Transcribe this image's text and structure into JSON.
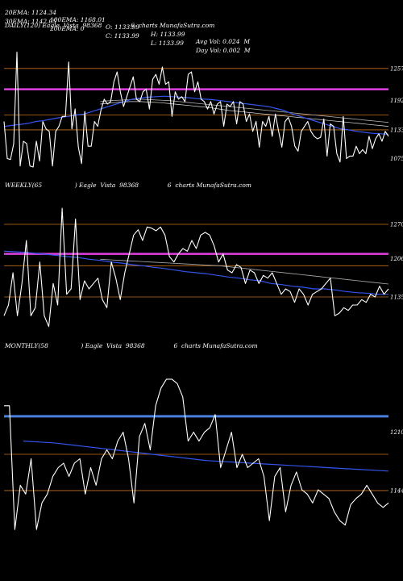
{
  "header": {
    "row1": [
      "20EMA: 1124.34",
      "100EMA: 1168.01",
      "O: 1133.99",
      "H: 1133.99",
      "Avg Vol: 0.024  M"
    ],
    "row2": [
      "30EMA: 1142.05",
      "200EMA: 0",
      "C: 1133.99",
      "L: 1133.99",
      "Day Vol: 0.002  M"
    ]
  },
  "colors": {
    "price": "#ffffff",
    "ema_blue": "#3355ee",
    "magenta": "#e040e0",
    "orange": "#c8701a",
    "gray": "#aaaaaa",
    "band_blue": "#4a7fe0"
  },
  "chart_data": [
    {
      "type": "line",
      "title": "DAILY(120) Eagle  Vista  98368               6  charts MunafaSutra.com",
      "price_labels": [
        "1257",
        "1192",
        "1133",
        "1075"
      ],
      "hlines": {
        "orange": [
          1257,
          1163,
          1133
        ],
        "magenta": 1215
      },
      "ylim": [
        1040,
        1330
      ],
      "series": [
        {
          "values": [
            1150,
            1075,
            1073,
            1105,
            1290,
            1060,
            1110,
            1105,
            1060,
            1058,
            1110,
            1070,
            1150,
            1135,
            1130,
            1060,
            1130,
            1140,
            1160,
            1160,
            1270,
            1135,
            1175,
            1098,
            1065,
            1170,
            1100,
            1100,
            1150,
            1140,
            1173,
            1195,
            1185,
            1190,
            1230,
            1250,
            1210,
            1180,
            1200,
            1220,
            1240,
            1195,
            1190,
            1210,
            1215,
            1175,
            1235,
            1245,
            1225,
            1260,
            1225,
            1230,
            1160,
            1210,
            1195,
            1200,
            1190,
            1245,
            1250,
            1210,
            1230,
            1195,
            1190,
            1175,
            1190,
            1165,
            1185,
            1190,
            1140,
            1185,
            1180,
            1190,
            1145,
            1190,
            1185,
            1150,
            1165,
            1130,
            1150,
            1098,
            1150,
            1140,
            1160,
            1120,
            1165,
            1130,
            1098,
            1150,
            1158,
            1140,
            1100,
            1090,
            1130,
            1140,
            1150,
            1130,
            1120,
            1115,
            1118,
            1155,
            1080,
            1145,
            1140,
            1085,
            1068,
            1160,
            1075,
            1080,
            1080,
            1100,
            1085,
            1093,
            1085,
            1120,
            1095,
            1115,
            1125,
            1110,
            1130,
            1120
          ]
        },
        {
          "values": [
            1140,
            1142,
            1144,
            1146,
            1150,
            1152,
            1155,
            1158,
            1160,
            1163,
            1165,
            1170,
            1175,
            1180,
            1185,
            1190,
            1195,
            1197,
            1199,
            1200,
            1201,
            1200,
            1199,
            1198,
            1196,
            1195,
            1194,
            1192,
            1190,
            1188,
            1186,
            1184,
            1182,
            1180,
            1176,
            1172,
            1165,
            1160,
            1155,
            1150,
            1145,
            1140,
            1135,
            1133,
            1130,
            1128,
            1126,
            1125,
            1124
          ]
        },
        {
          "values": [
            1190,
            1192,
            1193,
            1194,
            1195,
            1194,
            1193,
            1192,
            1190,
            1188,
            1186,
            1184,
            1182,
            1180,
            1178,
            1176,
            1174,
            1172,
            1170,
            1168,
            1166,
            1164,
            1162,
            1160,
            1158,
            1156,
            1154,
            1152,
            1150,
            1148
          ]
        },
        {
          "values": [
            1185,
            1187,
            1189,
            1190,
            1190,
            1189,
            1188,
            1186,
            1184,
            1182,
            1180,
            1178,
            1175,
            1172,
            1170,
            1168,
            1166,
            1164,
            1162,
            1160,
            1158,
            1156,
            1154,
            1152,
            1150,
            1148,
            1146,
            1144,
            1142,
            1140
          ]
        }
      ]
    },
    {
      "type": "line",
      "title": "WEEKLY(65                 ) Eagle  Vista  98368               6  charts MunafaSutra.com",
      "price_labels": [
        "1270",
        "1206",
        "1135"
      ],
      "hlines": {
        "orange": [
          1270,
          1193,
          1135
        ],
        "magenta": 1215
      },
      "ylim": [
        1060,
        1330
      ],
      "series": [
        {
          "values": [
            1100,
            1120,
            1180,
            1100,
            1160,
            1240,
            1100,
            1115,
            1200,
            1100,
            1080,
            1160,
            1120,
            1300,
            1140,
            1150,
            1280,
            1130,
            1165,
            1150,
            1160,
            1170,
            1130,
            1115,
            1200,
            1170,
            1130,
            1180,
            1215,
            1250,
            1260,
            1240,
            1265,
            1263,
            1258,
            1265,
            1250,
            1210,
            1200,
            1215,
            1225,
            1220,
            1240,
            1225,
            1250,
            1255,
            1250,
            1230,
            1200,
            1215,
            1185,
            1180,
            1195,
            1190,
            1160,
            1185,
            1180,
            1160,
            1175,
            1170,
            1180,
            1160,
            1140,
            1150,
            1145,
            1125,
            1150,
            1140,
            1120,
            1140,
            1145,
            1150,
            1160,
            1170,
            1100,
            1105,
            1115,
            1110,
            1120,
            1120,
            1130,
            1125,
            1140,
            1135,
            1155,
            1140,
            1150
          ]
        },
        {
          "values": [
            1220,
            1219,
            1218,
            1216,
            1214,
            1212,
            1210,
            1208,
            1205,
            1203,
            1200,
            1198,
            1195,
            1193,
            1190,
            1188,
            1185,
            1182,
            1180,
            1178,
            1175,
            1172,
            1170,
            1167,
            1165,
            1160,
            1158,
            1155,
            1153,
            1150,
            1150,
            1148,
            1145,
            1143,
            1142,
            1140,
            1140
          ]
        },
        {
          "values": [
            1205,
            1204,
            1203,
            1202,
            1201,
            1200,
            1199,
            1198,
            1197,
            1196,
            1195,
            1194,
            1193,
            1191,
            1189,
            1187,
            1185,
            1183,
            1181,
            1179,
            1177,
            1175,
            1173,
            1171,
            1169,
            1167,
            1165,
            1163,
            1161,
            1159
          ]
        }
      ]
    },
    {
      "type": "line",
      "title": "MONTHLY(58                 ) Eagle  Vista  98368               6  charts MunafaSutra.com",
      "price_labels": [
        "1210",
        "1144"
      ],
      "hlines": {
        "orange": [
          1185,
          1144
        ],
        "band_blue": 1228
      },
      "ylim": [
        1060,
        1300
      ],
      "series": [
        {
          "values": [
            1240,
            1240,
            1100,
            1150,
            1140,
            1180,
            1100,
            1130,
            1140,
            1160,
            1170,
            1175,
            1160,
            1175,
            1180,
            1140,
            1170,
            1150,
            1180,
            1190,
            1180,
            1200,
            1210,
            1180,
            1130,
            1205,
            1220,
            1190,
            1240,
            1260,
            1270,
            1270,
            1265,
            1250,
            1200,
            1210,
            1200,
            1210,
            1215,
            1230,
            1170,
            1190,
            1210,
            1170,
            1185,
            1170,
            1175,
            1180,
            1160,
            1110,
            1160,
            1170,
            1120,
            1150,
            1165,
            1145,
            1140,
            1130,
            1145,
            1140,
            1135,
            1120,
            1110,
            1105,
            1128,
            1135,
            1140,
            1150,
            1140,
            1130,
            1125,
            1130
          ]
        },
        {
          "values": [
            1200,
            1199,
            1198,
            1196,
            1194,
            1192,
            1190,
            1188,
            1186,
            1184,
            1182,
            1180,
            1178,
            1177,
            1176,
            1175,
            1174,
            1173,
            1172,
            1171,
            1170,
            1169,
            1168,
            1167,
            1166
          ]
        }
      ]
    }
  ]
}
